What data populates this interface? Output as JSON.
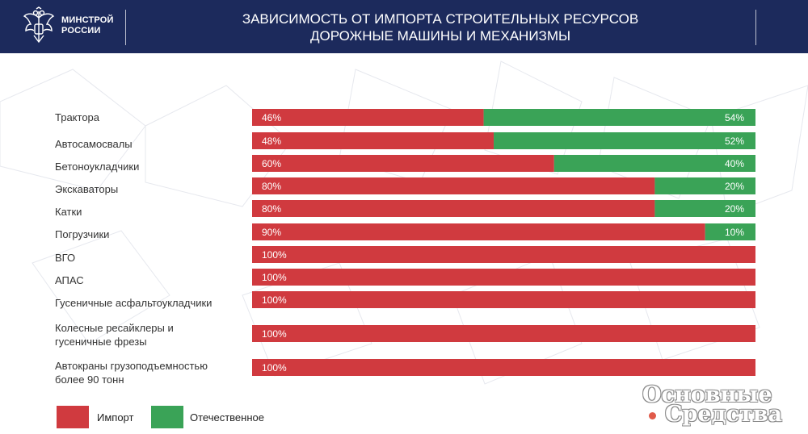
{
  "header": {
    "logo_lines": [
      "МИНСТРОЙ",
      "РОССИИ"
    ],
    "title_lines": [
      "ЗАВИСИМОСТЬ ОТ ИМПОРТА СТРОИТЕЛЬНЫХ РЕСУРСОВ",
      "ДОРОЖНЫЕ МАШИНЫ И МЕХАНИЗМЫ"
    ]
  },
  "colors": {
    "header_bg": "#1c2a5c",
    "import": "#d03a3f",
    "domestic": "#3aa357"
  },
  "chart_data": {
    "type": "bar",
    "orientation": "horizontal",
    "stacked": true,
    "normalized_percent": true,
    "categories": [
      "Трактора",
      "Автосамосвалы",
      "Бетоноукладчики",
      "Экскаваторы",
      "Катки",
      "Погрузчики",
      "ВГО",
      "АПАС",
      "Гусеничные асфальтоукладчики",
      "Колесные ресайклеры и\nгусеничные фрезы",
      "Автокраны грузоподъемностью\nболее 90 тонн"
    ],
    "series": [
      {
        "name": "Импорт",
        "values": [
          46,
          48,
          60,
          80,
          80,
          90,
          100,
          100,
          100,
          100,
          100
        ],
        "color": "#d03a3f"
      },
      {
        "name": "Отечественное",
        "values": [
          54,
          52,
          40,
          20,
          20,
          10,
          0,
          0,
          0,
          0,
          0
        ],
        "color": "#3aa357"
      }
    ],
    "value_labels": {
      "import": [
        "46%",
        "48%",
        "60%",
        "80%",
        "80%",
        "90%",
        "100%",
        "100%",
        "100%",
        "100%",
        "100%"
      ],
      "domestic": [
        "54%",
        "52%",
        "40%",
        "20%",
        "20%",
        "10%",
        "",
        "",
        "",
        "",
        ""
      ]
    },
    "xlim": [
      0,
      100
    ],
    "grid": false,
    "legend_position": "bottom-left"
  },
  "watermark": {
    "line1": "Основные",
    "line2": "Средства"
  }
}
